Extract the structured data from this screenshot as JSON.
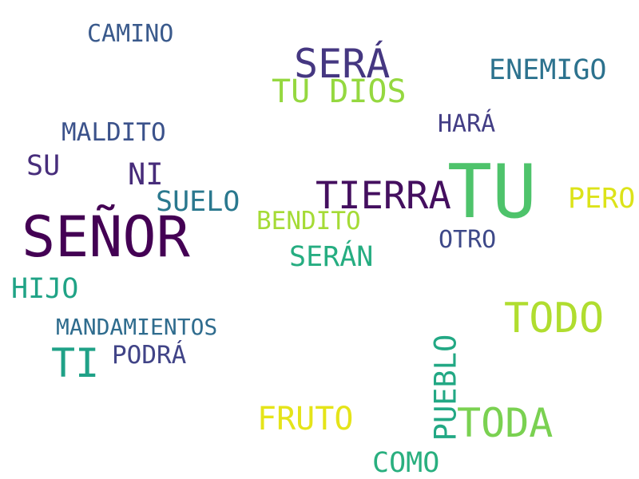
{
  "words": [
    {
      "text": "CAMINO",
      "color": "#3a5a8c"
    },
    {
      "text": "SERÁ",
      "color": "#453781"
    },
    {
      "text": "ENEMIGO",
      "color": "#2c728e"
    },
    {
      "text": "TU DIOS",
      "color": "#95d840"
    },
    {
      "text": "MALDITO",
      "color": "#3b528b"
    },
    {
      "text": "HARÁ",
      "color": "#433e85"
    },
    {
      "text": "SU",
      "color": "#472d7b"
    },
    {
      "text": "NI",
      "color": "#472c7a"
    },
    {
      "text": "TIERRA",
      "color": "#440f5f"
    },
    {
      "text": "TU",
      "color": "#4ec36b"
    },
    {
      "text": "PERO",
      "color": "#dce319"
    },
    {
      "text": "SUELO",
      "color": "#2a788e"
    },
    {
      "text": "SEÑOR",
      "color": "#440154"
    },
    {
      "text": "BENDITO",
      "color": "#a5db36"
    },
    {
      "text": "OTRO",
      "color": "#3e4989"
    },
    {
      "text": "SERÁN",
      "color": "#26ad81"
    },
    {
      "text": "HIJO",
      "color": "#20a386"
    },
    {
      "text": "TODO",
      "color": "#b0dd2f"
    },
    {
      "text": "MANDAMIENTOS",
      "color": "#2f6c8e"
    },
    {
      "text": "TI",
      "color": "#1fa187"
    },
    {
      "text": "PODRÁ",
      "color": "#414487"
    },
    {
      "text": "PUEBLO",
      "color": "#22a884"
    },
    {
      "text": "FRUTO",
      "color": "#e5e419"
    },
    {
      "text": "TODA",
      "color": "#7ad151"
    },
    {
      "text": "COMO",
      "color": "#29af7f"
    }
  ]
}
